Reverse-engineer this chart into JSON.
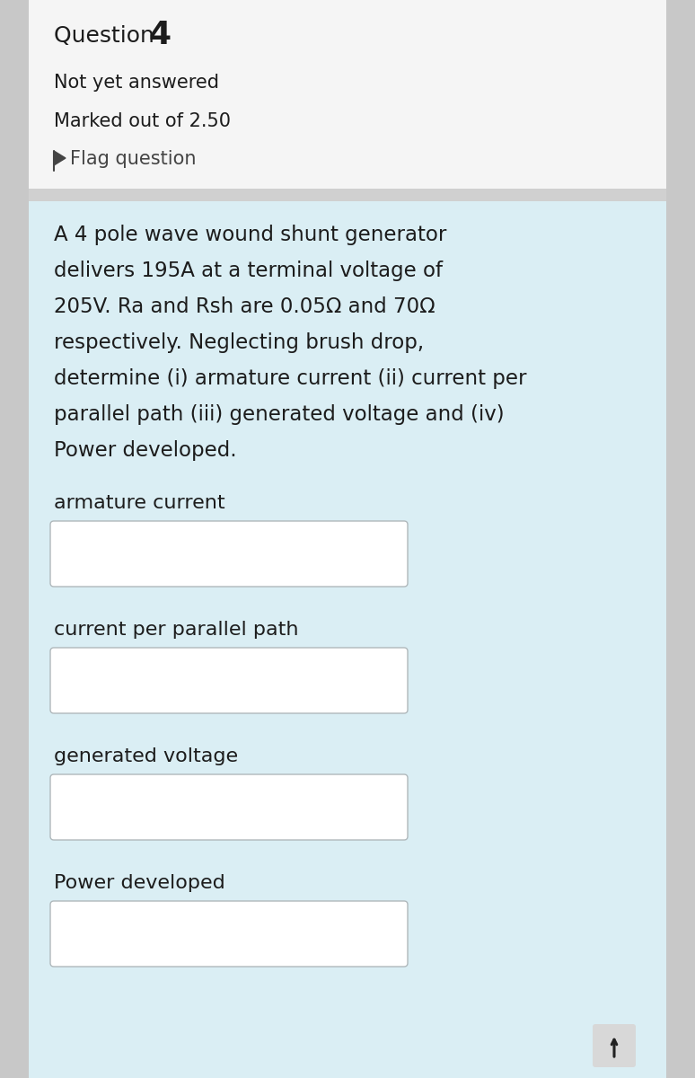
{
  "question_label": "Question",
  "question_number": "4",
  "status": "Not yet answered",
  "marked": "Marked out of 2.50",
  "flag": "Flag question",
  "problem_lines": [
    "A 4 pole wave wound shunt generator",
    "delivers 195A at a terminal voltage of",
    "205V. Ra and Rsh are 0.05Ω and 70Ω",
    "respectively. Neglecting brush drop,",
    "determine (i) armature current (ii) current per",
    "parallel path (iii) generated voltage and (iv)",
    "Power developed."
  ],
  "fields": [
    "armature current",
    "current per parallel path",
    "generated voltage",
    "Power developed"
  ],
  "top_bg": "#f5f5f5",
  "bottom_bg": "#daeef4",
  "outer_bg": "#c8c8c8",
  "box_border_color": "#b0b8bb",
  "box_fill_color": "#ffffff",
  "text_color": "#1c1c1c",
  "flag_color": "#444444",
  "sep_color": "#d0d0d0"
}
